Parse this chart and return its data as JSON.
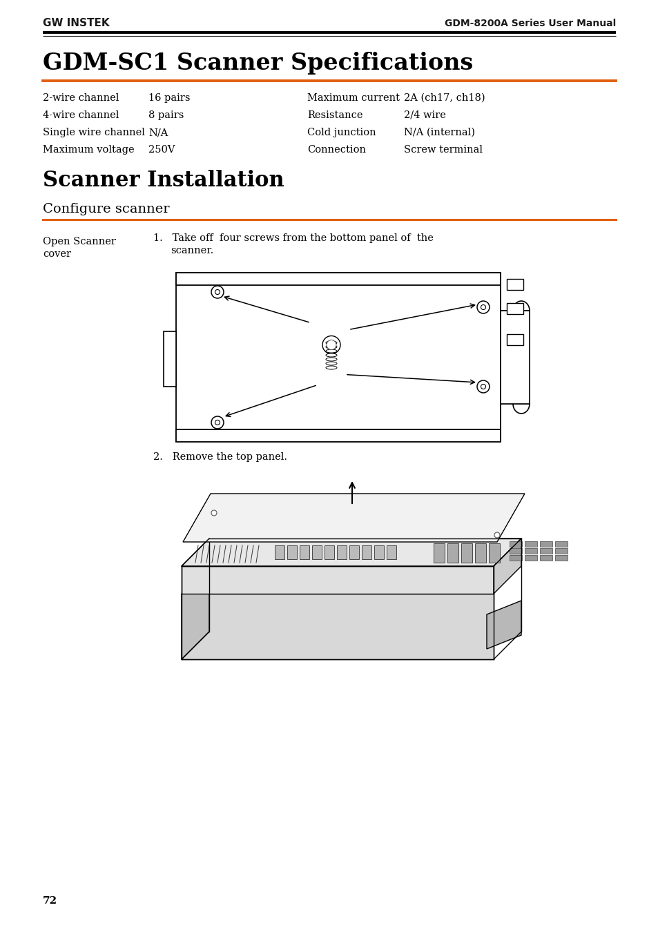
{
  "bg_color": "#ffffff",
  "header_logo_text": "GW INSTEK",
  "header_right_text": "GDM-8200A Series User Manual",
  "orange_line_color": "#e06010",
  "specs": [
    [
      "2-wire channel",
      "16 pairs",
      "Maximum current",
      "2A (ch17, ch18)"
    ],
    [
      "4-wire channel",
      "8 pairs",
      "Resistance",
      "2/4 wire"
    ],
    [
      "Single wire channel",
      "N/A",
      "Cold junction",
      "N/A (internal)"
    ],
    [
      "Maximum voltage",
      "250V",
      "Connection",
      "Screw terminal"
    ]
  ],
  "title1": "GDM-SC1 Scanner Specifications",
  "title2": "Scanner Installation",
  "section_title": "Configure scanner",
  "step1_label_line1": "Open Scanner",
  "step1_label_line2": "cover",
  "step1_text_line1": "Take off  four screws from the bottom panel of  the",
  "step1_text_line2": "scanner.",
  "step2_text": "Remove the top panel.",
  "page_num": "72"
}
